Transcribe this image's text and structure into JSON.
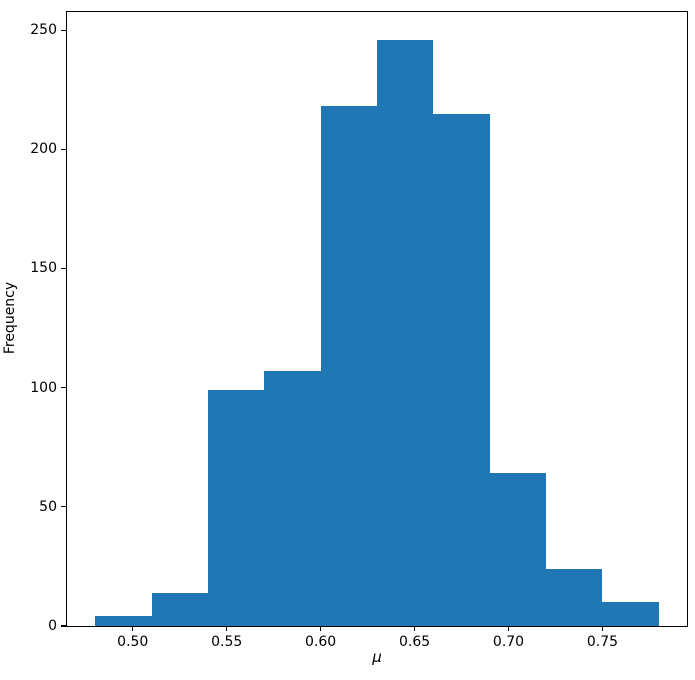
{
  "figure": {
    "background": "#ffffff"
  },
  "chart_data": {
    "type": "bar",
    "subtype": "histogram",
    "title": "",
    "xlabel": "μ",
    "ylabel": "Frequency",
    "bar_color": "#1f77b4",
    "spine_color": "#000000",
    "text_color": "#000000",
    "grid": false,
    "legend": "none",
    "bin_edges": [
      0.48,
      0.51,
      0.54,
      0.57,
      0.6,
      0.63,
      0.66,
      0.69,
      0.72,
      0.75,
      0.78
    ],
    "counts": [
      4,
      14,
      99,
      107,
      218,
      246,
      215,
      64,
      24,
      10
    ],
    "xlim": [
      0.465,
      0.795
    ],
    "ylim": [
      0,
      257.6
    ],
    "xticks": {
      "values": [
        0.5,
        0.55,
        0.6,
        0.65,
        0.7,
        0.75
      ],
      "labels": [
        "0.50",
        "0.55",
        "0.60",
        "0.65",
        "0.70",
        "0.75"
      ]
    },
    "yticks": {
      "values": [
        0,
        50,
        100,
        150,
        200,
        250
      ],
      "labels": [
        "0",
        "50",
        "100",
        "150",
        "200",
        "250"
      ]
    }
  }
}
